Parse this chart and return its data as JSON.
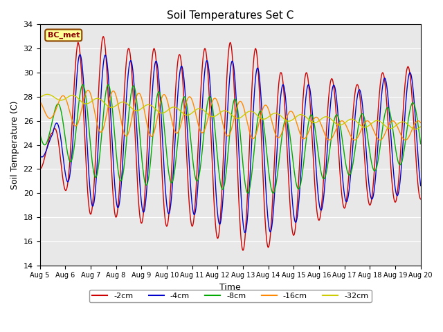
{
  "title": "Soil Temperatures Set C",
  "xlabel": "Time",
  "ylabel": "Soil Temperature (C)",
  "ylim": [
    14,
    34
  ],
  "xtick_labels": [
    "Aug 5",
    "Aug 6",
    "Aug 7",
    "Aug 8",
    "Aug 9",
    "Aug 10",
    "Aug 11",
    "Aug 12",
    "Aug 13",
    "Aug 14",
    "Aug 15",
    "Aug 16",
    "Aug 17",
    "Aug 18",
    "Aug 19",
    "Aug 20"
  ],
  "legend_label": "BC_met",
  "background_color": "#e8e8e8",
  "series": [
    {
      "label": "-2cm",
      "color": "#cc0000",
      "mean": [
        23.5,
        25.5,
        25.5,
        25.0,
        24.5,
        24.5,
        24.5,
        24.0,
        23.5,
        23.0,
        23.5,
        24.0,
        24.0,
        24.5,
        25.0
      ],
      "amp": [
        1.5,
        7.0,
        7.5,
        7.0,
        7.5,
        7.0,
        7.5,
        8.5,
        8.5,
        7.0,
        6.5,
        5.5,
        5.0,
        5.5,
        5.5
      ],
      "phase": 0.0
    },
    {
      "label": "-4cm",
      "color": "#0000cc",
      "mean": [
        24.0,
        25.5,
        25.0,
        25.0,
        24.5,
        24.5,
        24.5,
        24.0,
        23.5,
        23.0,
        23.5,
        24.0,
        24.0,
        24.5,
        25.0
      ],
      "amp": [
        1.0,
        6.0,
        6.5,
        6.0,
        6.5,
        6.0,
        6.5,
        7.0,
        7.0,
        6.0,
        5.5,
        5.0,
        4.5,
        5.0,
        5.0
      ],
      "phase": 0.5
    },
    {
      "label": "-8cm",
      "color": "#00aa00",
      "mean": [
        25.5,
        25.5,
        25.0,
        25.0,
        24.5,
        24.5,
        24.5,
        24.0,
        23.5,
        23.0,
        23.5,
        24.0,
        24.0,
        24.5,
        25.0
      ],
      "amp": [
        1.5,
        3.5,
        4.0,
        4.0,
        4.0,
        3.5,
        3.5,
        4.0,
        3.5,
        3.0,
        3.0,
        2.5,
        2.5,
        2.5,
        2.5
      ],
      "phase": 1.2
    },
    {
      "label": "-16cm",
      "color": "#ff8800",
      "mean": [
        27.0,
        27.0,
        26.8,
        26.5,
        26.5,
        26.5,
        26.5,
        26.2,
        26.0,
        25.8,
        25.5,
        25.2,
        25.2,
        25.2,
        25.2
      ],
      "amp": [
        0.8,
        1.5,
        1.8,
        1.8,
        1.8,
        1.5,
        1.5,
        1.5,
        1.5,
        1.2,
        1.0,
        0.8,
        0.8,
        0.8,
        0.8
      ],
      "phase": 2.5
    },
    {
      "label": "-32cm",
      "color": "#cccc00",
      "mean": [
        28.0,
        27.8,
        27.5,
        27.2,
        27.0,
        26.8,
        26.7,
        26.5,
        26.5,
        26.3,
        26.2,
        26.0,
        25.8,
        25.7,
        25.6
      ],
      "amp": [
        0.2,
        0.3,
        0.3,
        0.3,
        0.3,
        0.3,
        0.3,
        0.3,
        0.3,
        0.3,
        0.3,
        0.3,
        0.3,
        0.3,
        0.3
      ],
      "phase": 5.0
    }
  ],
  "n_points_per_day": 240,
  "duration_days": 15
}
